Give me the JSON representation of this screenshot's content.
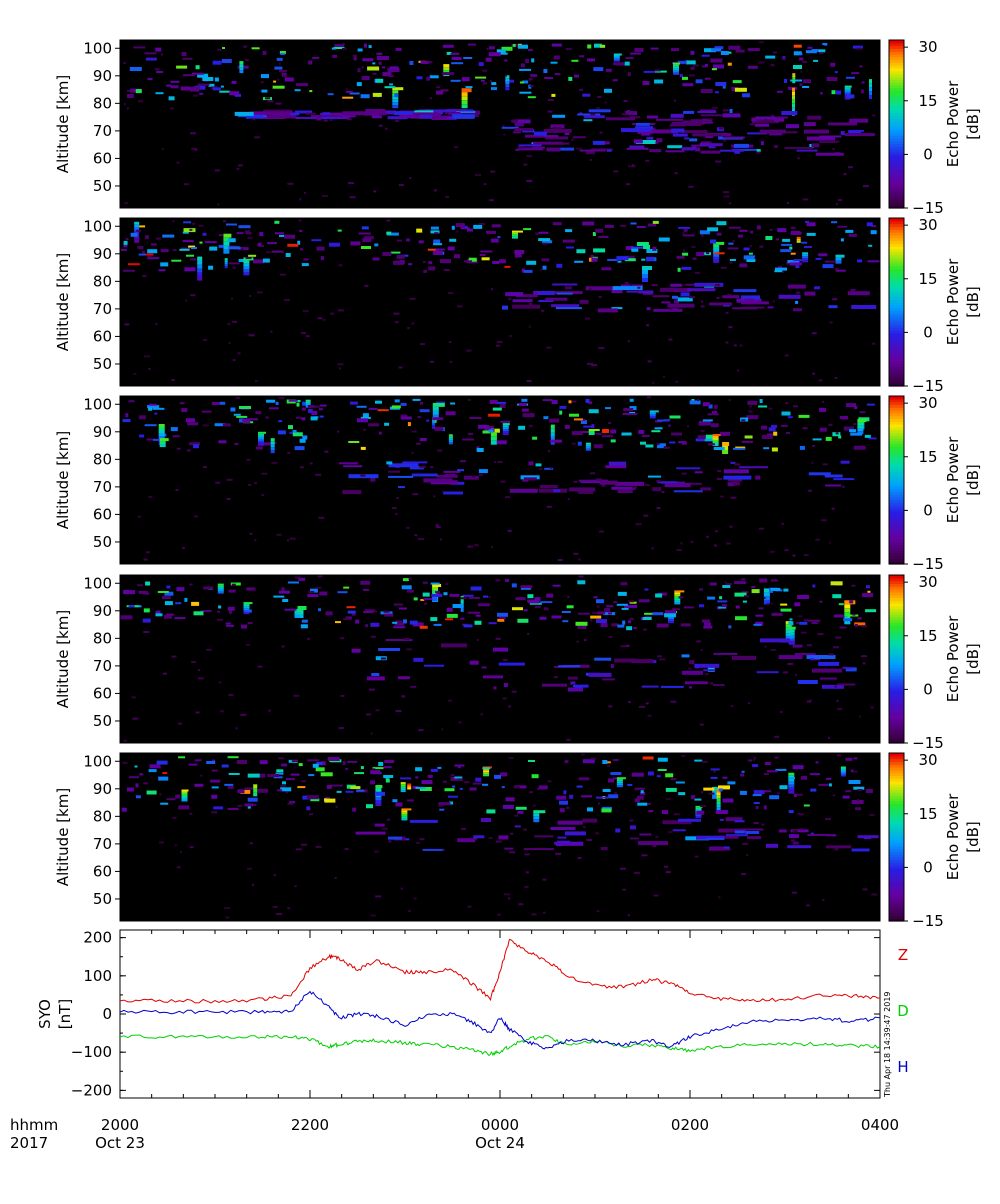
{
  "figure": {
    "year_label": "2017",
    "hhmm_label": "hhmm",
    "timestamp": "Thu Apr 18 14:39:47 2019"
  },
  "chart_data": [
    {
      "type": "heatmap",
      "panel": 1,
      "ylabel": "Altitude [km]",
      "yticks": [
        50,
        60,
        70,
        80,
        90,
        100
      ],
      "ylim": [
        42,
        103
      ],
      "colorbar": {
        "label": "Echo Power",
        "unit": "[dB]",
        "ticks": [
          30,
          15,
          0,
          -15
        ],
        "range": [
          -15,
          32
        ]
      },
      "xlim_hours": [
        20,
        28
      ],
      "echo_layers": [
        {
          "t_start": 20.0,
          "t_end": 28.0,
          "alt_low": 82,
          "alt_high": 102,
          "density": "high",
          "note": "sporadic strong echoes"
        },
        {
          "t_start": 24.0,
          "t_end": 28.0,
          "alt_low": 62,
          "alt_high": 78,
          "density": "medium"
        },
        {
          "t_start": 21.2,
          "t_end": 23.6,
          "alt_low": 75,
          "alt_high": 78,
          "density": "low"
        }
      ]
    },
    {
      "type": "heatmap",
      "panel": 2,
      "ylabel": "Altitude [km]",
      "yticks": [
        50,
        60,
        70,
        80,
        90,
        100
      ],
      "ylim": [
        42,
        103
      ],
      "colorbar": {
        "label": "Echo Power",
        "unit": "[dB]",
        "ticks": [
          30,
          15,
          0,
          -15
        ],
        "range": [
          -15,
          32
        ]
      },
      "xlim_hours": [
        20,
        28
      ],
      "echo_layers": [
        {
          "t_start": 20.0,
          "t_end": 28.0,
          "alt_low": 84,
          "alt_high": 102,
          "density": "high"
        },
        {
          "t_start": 24.0,
          "t_end": 28.0,
          "alt_low": 70,
          "alt_high": 80,
          "density": "low"
        }
      ]
    },
    {
      "type": "heatmap",
      "panel": 3,
      "ylabel": "Altitude [km]",
      "yticks": [
        50,
        60,
        70,
        80,
        90,
        100
      ],
      "ylim": [
        42,
        103
      ],
      "colorbar": {
        "label": "Echo Power",
        "unit": "[dB]",
        "ticks": [
          30,
          15,
          0,
          -15
        ],
        "range": [
          -15,
          32
        ]
      },
      "xlim_hours": [
        20,
        28
      ],
      "echo_layers": [
        {
          "t_start": 20.0,
          "t_end": 28.0,
          "alt_low": 84,
          "alt_high": 102,
          "density": "high"
        },
        {
          "t_start": 22.2,
          "t_end": 28.0,
          "alt_low": 68,
          "alt_high": 80,
          "density": "low"
        }
      ]
    },
    {
      "type": "heatmap",
      "panel": 4,
      "ylabel": "Altitude [km]",
      "yticks": [
        50,
        60,
        70,
        80,
        90,
        100
      ],
      "ylim": [
        42,
        103
      ],
      "colorbar": {
        "label": "Echo Power",
        "unit": "[dB]",
        "ticks": [
          30,
          15,
          0,
          -15
        ],
        "range": [
          -15,
          32
        ]
      },
      "xlim_hours": [
        20,
        28
      ],
      "echo_layers": [
        {
          "t_start": 20.0,
          "t_end": 28.0,
          "alt_low": 84,
          "alt_high": 102,
          "density": "high"
        },
        {
          "t_start": 22.4,
          "t_end": 28.0,
          "alt_low": 62,
          "alt_high": 80,
          "density": "low"
        }
      ]
    },
    {
      "type": "heatmap",
      "panel": 5,
      "ylabel": "Altitude [km]",
      "yticks": [
        50,
        60,
        70,
        80,
        90,
        100
      ],
      "ylim": [
        42,
        103
      ],
      "colorbar": {
        "label": "Echo Power",
        "unit": "[dB]",
        "ticks": [
          30,
          15,
          0,
          -15
        ],
        "range": [
          -15,
          32
        ]
      },
      "xlim_hours": [
        20,
        28
      ],
      "echo_layers": [
        {
          "t_start": 20.0,
          "t_end": 28.0,
          "alt_low": 82,
          "alt_high": 102,
          "density": "high"
        },
        {
          "t_start": 22.4,
          "t_end": 28.0,
          "alt_low": 68,
          "alt_high": 80,
          "density": "low"
        }
      ]
    },
    {
      "type": "line",
      "panel": 6,
      "ylabel": "SYO",
      "yunit": "[nT]",
      "yticks": [
        -200,
        -100,
        0,
        100,
        200
      ],
      "ylim": [
        -220,
        220
      ],
      "xlim_hours": [
        20,
        28
      ],
      "x_ticks": [
        {
          "hour": 20,
          "label": "2000",
          "date": "Oct 23"
        },
        {
          "hour": 22,
          "label": "2200",
          "date": ""
        },
        {
          "hour": 24,
          "label": "0000",
          "date": "Oct 24"
        },
        {
          "hour": 26,
          "label": "0200",
          "date": ""
        },
        {
          "hour": 28,
          "label": "0400",
          "date": ""
        }
      ],
      "x_hours": [
        20.0,
        20.5,
        21.0,
        21.5,
        21.8,
        22.0,
        22.2,
        22.3,
        22.5,
        22.7,
        23.0,
        23.2,
        23.5,
        23.7,
        23.9,
        24.0,
        24.1,
        24.3,
        24.5,
        24.7,
        25.0,
        25.3,
        25.6,
        25.8,
        26.0,
        26.3,
        26.6,
        27.0,
        27.4,
        27.7,
        28.0
      ],
      "series": [
        {
          "name": "Z",
          "color": "#e00000",
          "values": [
            35,
            35,
            33,
            38,
            50,
            120,
            150,
            145,
            115,
            140,
            110,
            110,
            115,
            80,
            40,
            110,
            195,
            160,
            140,
            100,
            75,
            70,
            90,
            80,
            55,
            40,
            35,
            38,
            50,
            48,
            42
          ]
        },
        {
          "name": "D",
          "color": "#00d000",
          "values": [
            -60,
            -60,
            -60,
            -60,
            -60,
            -65,
            -85,
            -80,
            -72,
            -70,
            -75,
            -80,
            -85,
            -95,
            -105,
            -100,
            -85,
            -65,
            -60,
            -80,
            -70,
            -85,
            -80,
            -90,
            -95,
            -85,
            -80,
            -80,
            -78,
            -82,
            -85
          ]
        },
        {
          "name": "H",
          "color": "#0000cc",
          "values": [
            5,
            5,
            5,
            5,
            8,
            60,
            20,
            -10,
            0,
            -5,
            -30,
            -5,
            0,
            -20,
            -50,
            -10,
            -40,
            -75,
            -90,
            -70,
            -70,
            -80,
            -70,
            -85,
            -60,
            -40,
            -20,
            -15,
            -10,
            -20,
            -10
          ]
        }
      ]
    }
  ]
}
